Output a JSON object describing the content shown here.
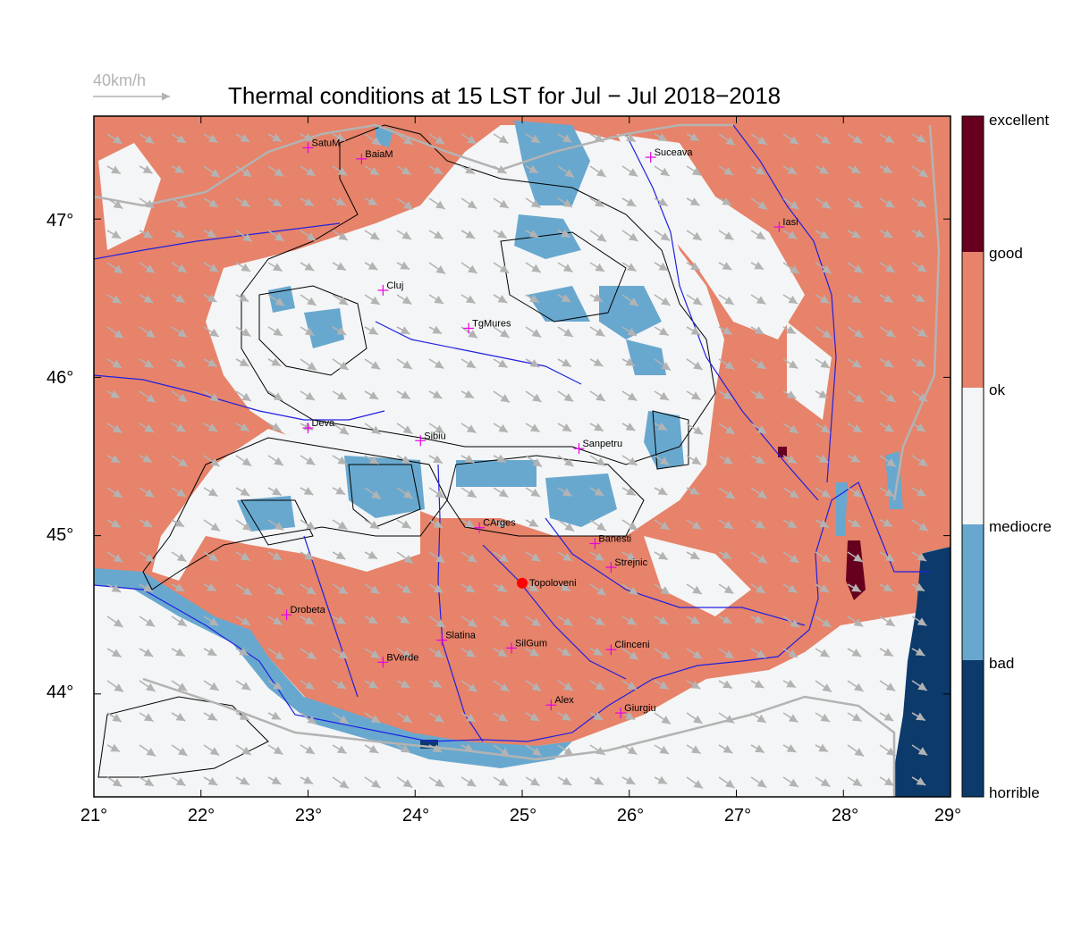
{
  "title": "Thermal conditions at 15 LST for Jul − Jul  2018−2018",
  "wind_key_label": "40km/h",
  "colorbar": {
    "labels": [
      "excellent",
      "good",
      "ok",
      "mediocre",
      "bad",
      "horrible"
    ],
    "colors": [
      "#67001f",
      "#e6836a",
      "#f4f5f6",
      "#68a8cf",
      "#0b3a6b"
    ]
  },
  "axes": {
    "lon_labels": [
      "21°",
      "22°",
      "23°",
      "24°",
      "25°",
      "26°",
      "27°",
      "28°",
      "29°"
    ],
    "lat_labels": [
      "47°",
      "46°",
      "45°",
      "44°"
    ],
    "lon_range": [
      21,
      29
    ],
    "lat_range": [
      43.35,
      47.65
    ]
  },
  "cities": [
    {
      "name": "SatuM",
      "lon": 23.0,
      "lat": 47.45
    },
    {
      "name": "BaiaM",
      "lon": 23.5,
      "lat": 47.38
    },
    {
      "name": "Suceava",
      "lon": 26.2,
      "lat": 47.39
    },
    {
      "name": "Iasi",
      "lon": 27.4,
      "lat": 46.95
    },
    {
      "name": "Cluj",
      "lon": 23.7,
      "lat": 46.55
    },
    {
      "name": "TgMures",
      "lon": 24.5,
      "lat": 46.31
    },
    {
      "name": "Deva",
      "lon": 23.0,
      "lat": 45.68
    },
    {
      "name": "Sibiu",
      "lon": 24.05,
      "lat": 45.6
    },
    {
      "name": "Sanpetru",
      "lon": 25.53,
      "lat": 45.55
    },
    {
      "name": "CArges",
      "lon": 24.6,
      "lat": 45.05
    },
    {
      "name": "Banesti",
      "lon": 25.68,
      "lat": 44.95
    },
    {
      "name": "Strejnic",
      "lon": 25.83,
      "lat": 44.8
    },
    {
      "name": "Drobeta",
      "lon": 22.8,
      "lat": 44.5
    },
    {
      "name": "Slatina",
      "lon": 24.25,
      "lat": 44.34
    },
    {
      "name": "SilGum",
      "lon": 24.9,
      "lat": 44.29
    },
    {
      "name": "Clinceni",
      "lon": 25.83,
      "lat": 44.28
    },
    {
      "name": "BVerde",
      "lon": 23.7,
      "lat": 44.2
    },
    {
      "name": "Alex",
      "lon": 25.27,
      "lat": 43.93
    },
    {
      "name": "Giurgiu",
      "lon": 25.92,
      "lat": 43.88
    }
  ],
  "marker": {
    "name": "Topoloveni",
    "lon": 25.0,
    "lat": 44.7,
    "color": "#ff0000"
  }
}
